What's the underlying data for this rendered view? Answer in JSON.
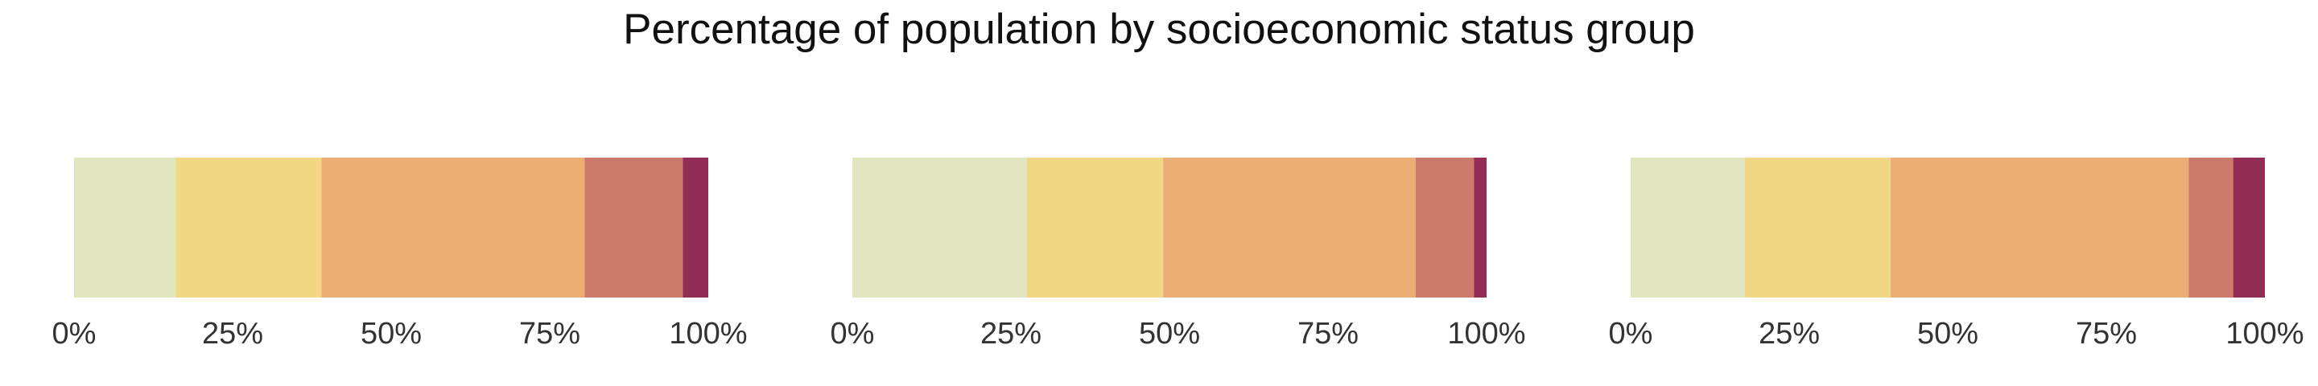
{
  "title": "Percentage of population by socioeconomic status group",
  "colors": [
    "#e1e6c1",
    "#f2d784",
    "#edae76",
    "#cc7a6c",
    "#922d55"
  ],
  "chart_data": [
    {
      "type": "bar",
      "orientation": "horizontal-stacked",
      "xlim": [
        0,
        100
      ],
      "xticks": [
        "0%",
        "25%",
        "50%",
        "75%",
        "100%"
      ],
      "segments": [
        {
          "start": 0,
          "end": 16
        },
        {
          "start": 16,
          "end": 39
        },
        {
          "start": 39,
          "end": 80.5
        },
        {
          "start": 80.5,
          "end": 96
        },
        {
          "start": 96,
          "end": 100
        }
      ]
    },
    {
      "type": "bar",
      "orientation": "horizontal-stacked",
      "xlim": [
        0,
        100
      ],
      "xticks": [
        "0%",
        "25%",
        "50%",
        "75%",
        "100%"
      ],
      "segments": [
        {
          "start": 0,
          "end": 27.5
        },
        {
          "start": 27.5,
          "end": 49
        },
        {
          "start": 49,
          "end": 88.8
        },
        {
          "start": 88.8,
          "end": 98
        },
        {
          "start": 98,
          "end": 100
        }
      ]
    },
    {
      "type": "bar",
      "orientation": "horizontal-stacked",
      "xlim": [
        0,
        100
      ],
      "xticks": [
        "0%",
        "25%",
        "50%",
        "75%",
        "100%"
      ],
      "segments": [
        {
          "start": 0,
          "end": 18
        },
        {
          "start": 18,
          "end": 41
        },
        {
          "start": 41,
          "end": 88
        },
        {
          "start": 88,
          "end": 95
        },
        {
          "start": 95,
          "end": 100
        }
      ]
    }
  ]
}
